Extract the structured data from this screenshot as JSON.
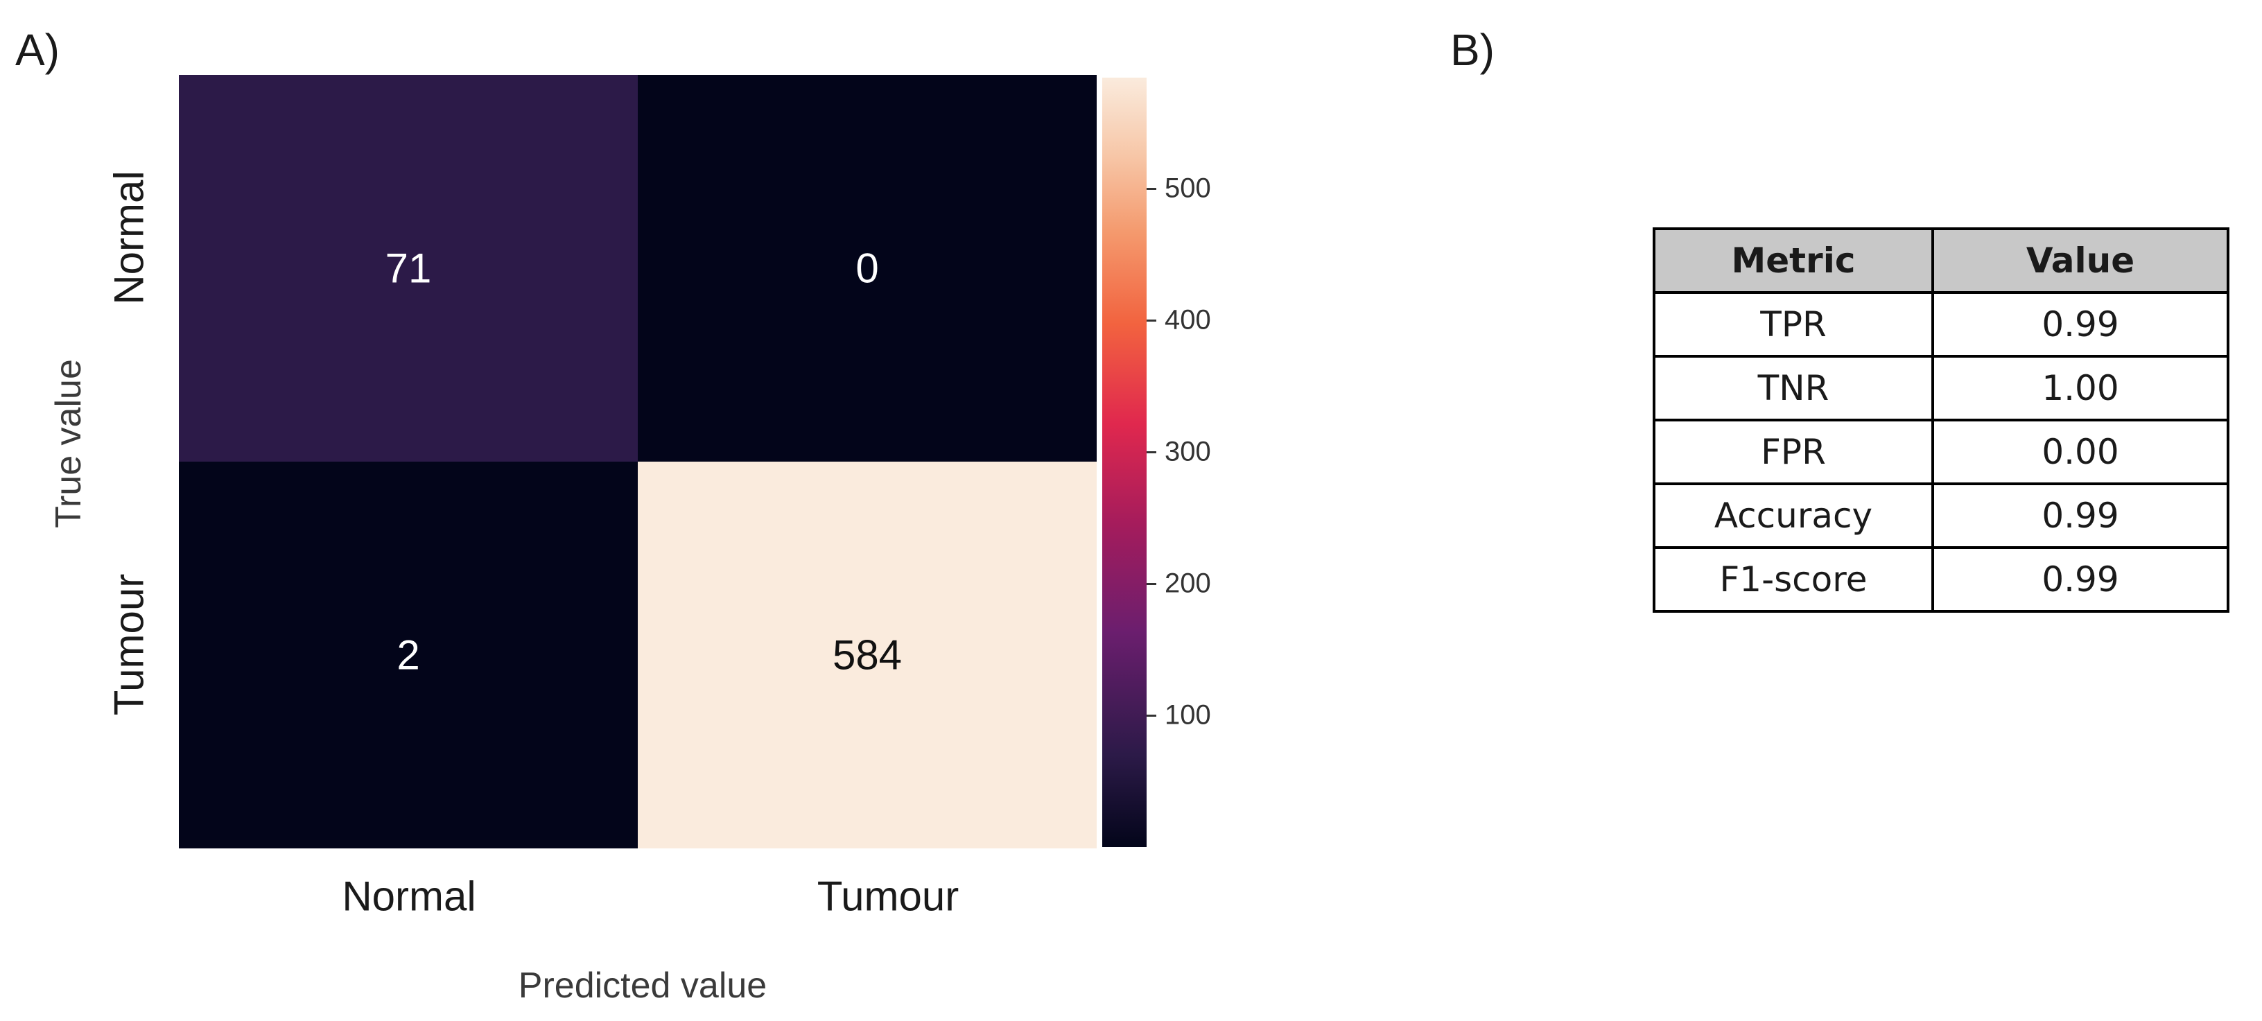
{
  "panels": {
    "a_label": "A)",
    "b_label": "B)"
  },
  "chart_data": {
    "type": "heatmap",
    "title": "",
    "xlabel": "Predicted value",
    "ylabel": "True value",
    "x_categories": [
      "Normal",
      "Tumour"
    ],
    "y_categories": [
      "Normal",
      "Tumour"
    ],
    "values": [
      [
        71,
        0
      ],
      [
        2,
        584
      ]
    ],
    "cell_labels": [
      [
        "71",
        "0"
      ],
      [
        "2",
        "584"
      ]
    ],
    "colorbar": {
      "ticks": [
        100,
        200,
        300,
        400,
        500
      ],
      "tick_labels": [
        "100",
        "200",
        "300",
        "400",
        "500"
      ],
      "range": [
        0,
        584
      ],
      "colormap": "rocket"
    },
    "colors": {
      "dark": "#03051a",
      "normal_cell": "#2c1a48",
      "tumour_cell": "#faebdd"
    }
  },
  "table": {
    "headers": [
      "Metric",
      "Value"
    ],
    "rows": [
      [
        "TPR",
        "0.99"
      ],
      [
        "TNR",
        "1.00"
      ],
      [
        "FPR",
        "0.00"
      ],
      [
        "Accuracy",
        "0.99"
      ],
      [
        "F1-score",
        "0.99"
      ]
    ]
  }
}
